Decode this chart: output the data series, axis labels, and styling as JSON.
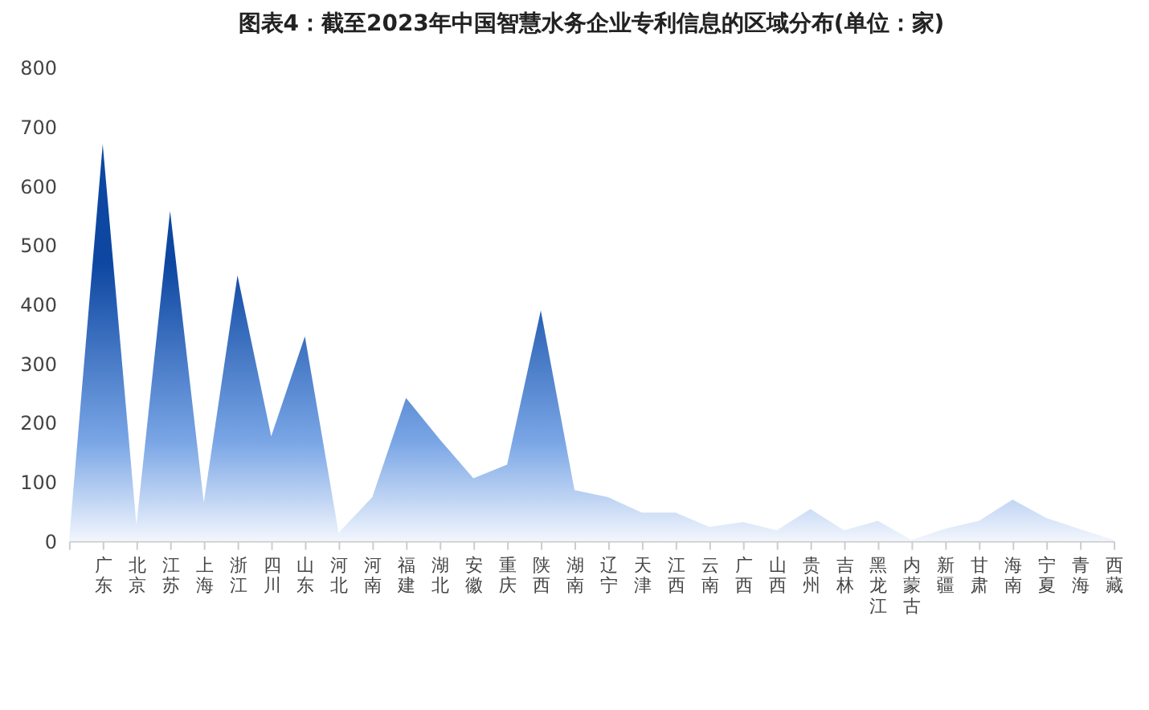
{
  "chart_data": {
    "type": "area",
    "title": "图表4：截至2023年中国智慧水务企业专利信息的区域分布(单位：家)",
    "categories": [
      null,
      "广东",
      "北京",
      "江苏",
      "上海",
      "浙江",
      "四川",
      "山东",
      "河北",
      "河南",
      "福建",
      "湖北",
      "安徽",
      "重庆",
      "陕西",
      "湖南",
      "辽宁",
      "天津",
      "江西",
      "云南",
      "广西",
      "山西",
      "贵州",
      "吉林",
      "黑龙江",
      "内蒙古",
      "新疆",
      "甘肃",
      "海南",
      "宁夏",
      "青海",
      "西藏"
    ],
    "series": [
      {
        "color": "#0d47a1",
        "values": [
          0,
          671,
          27,
          558,
          65,
          449,
          177,
          346,
          14,
          74,
          242,
          172,
          106,
          129,
          390,
          86,
          74,
          48,
          48,
          24,
          32,
          18,
          54,
          18,
          34,
          2,
          21,
          34,
          70,
          39,
          20,
          2
        ]
      }
    ],
    "ylim": [
      0,
      800
    ],
    "yticks": [
      0,
      100,
      200,
      300,
      400,
      500,
      600,
      700,
      800
    ],
    "grid": false
  }
}
